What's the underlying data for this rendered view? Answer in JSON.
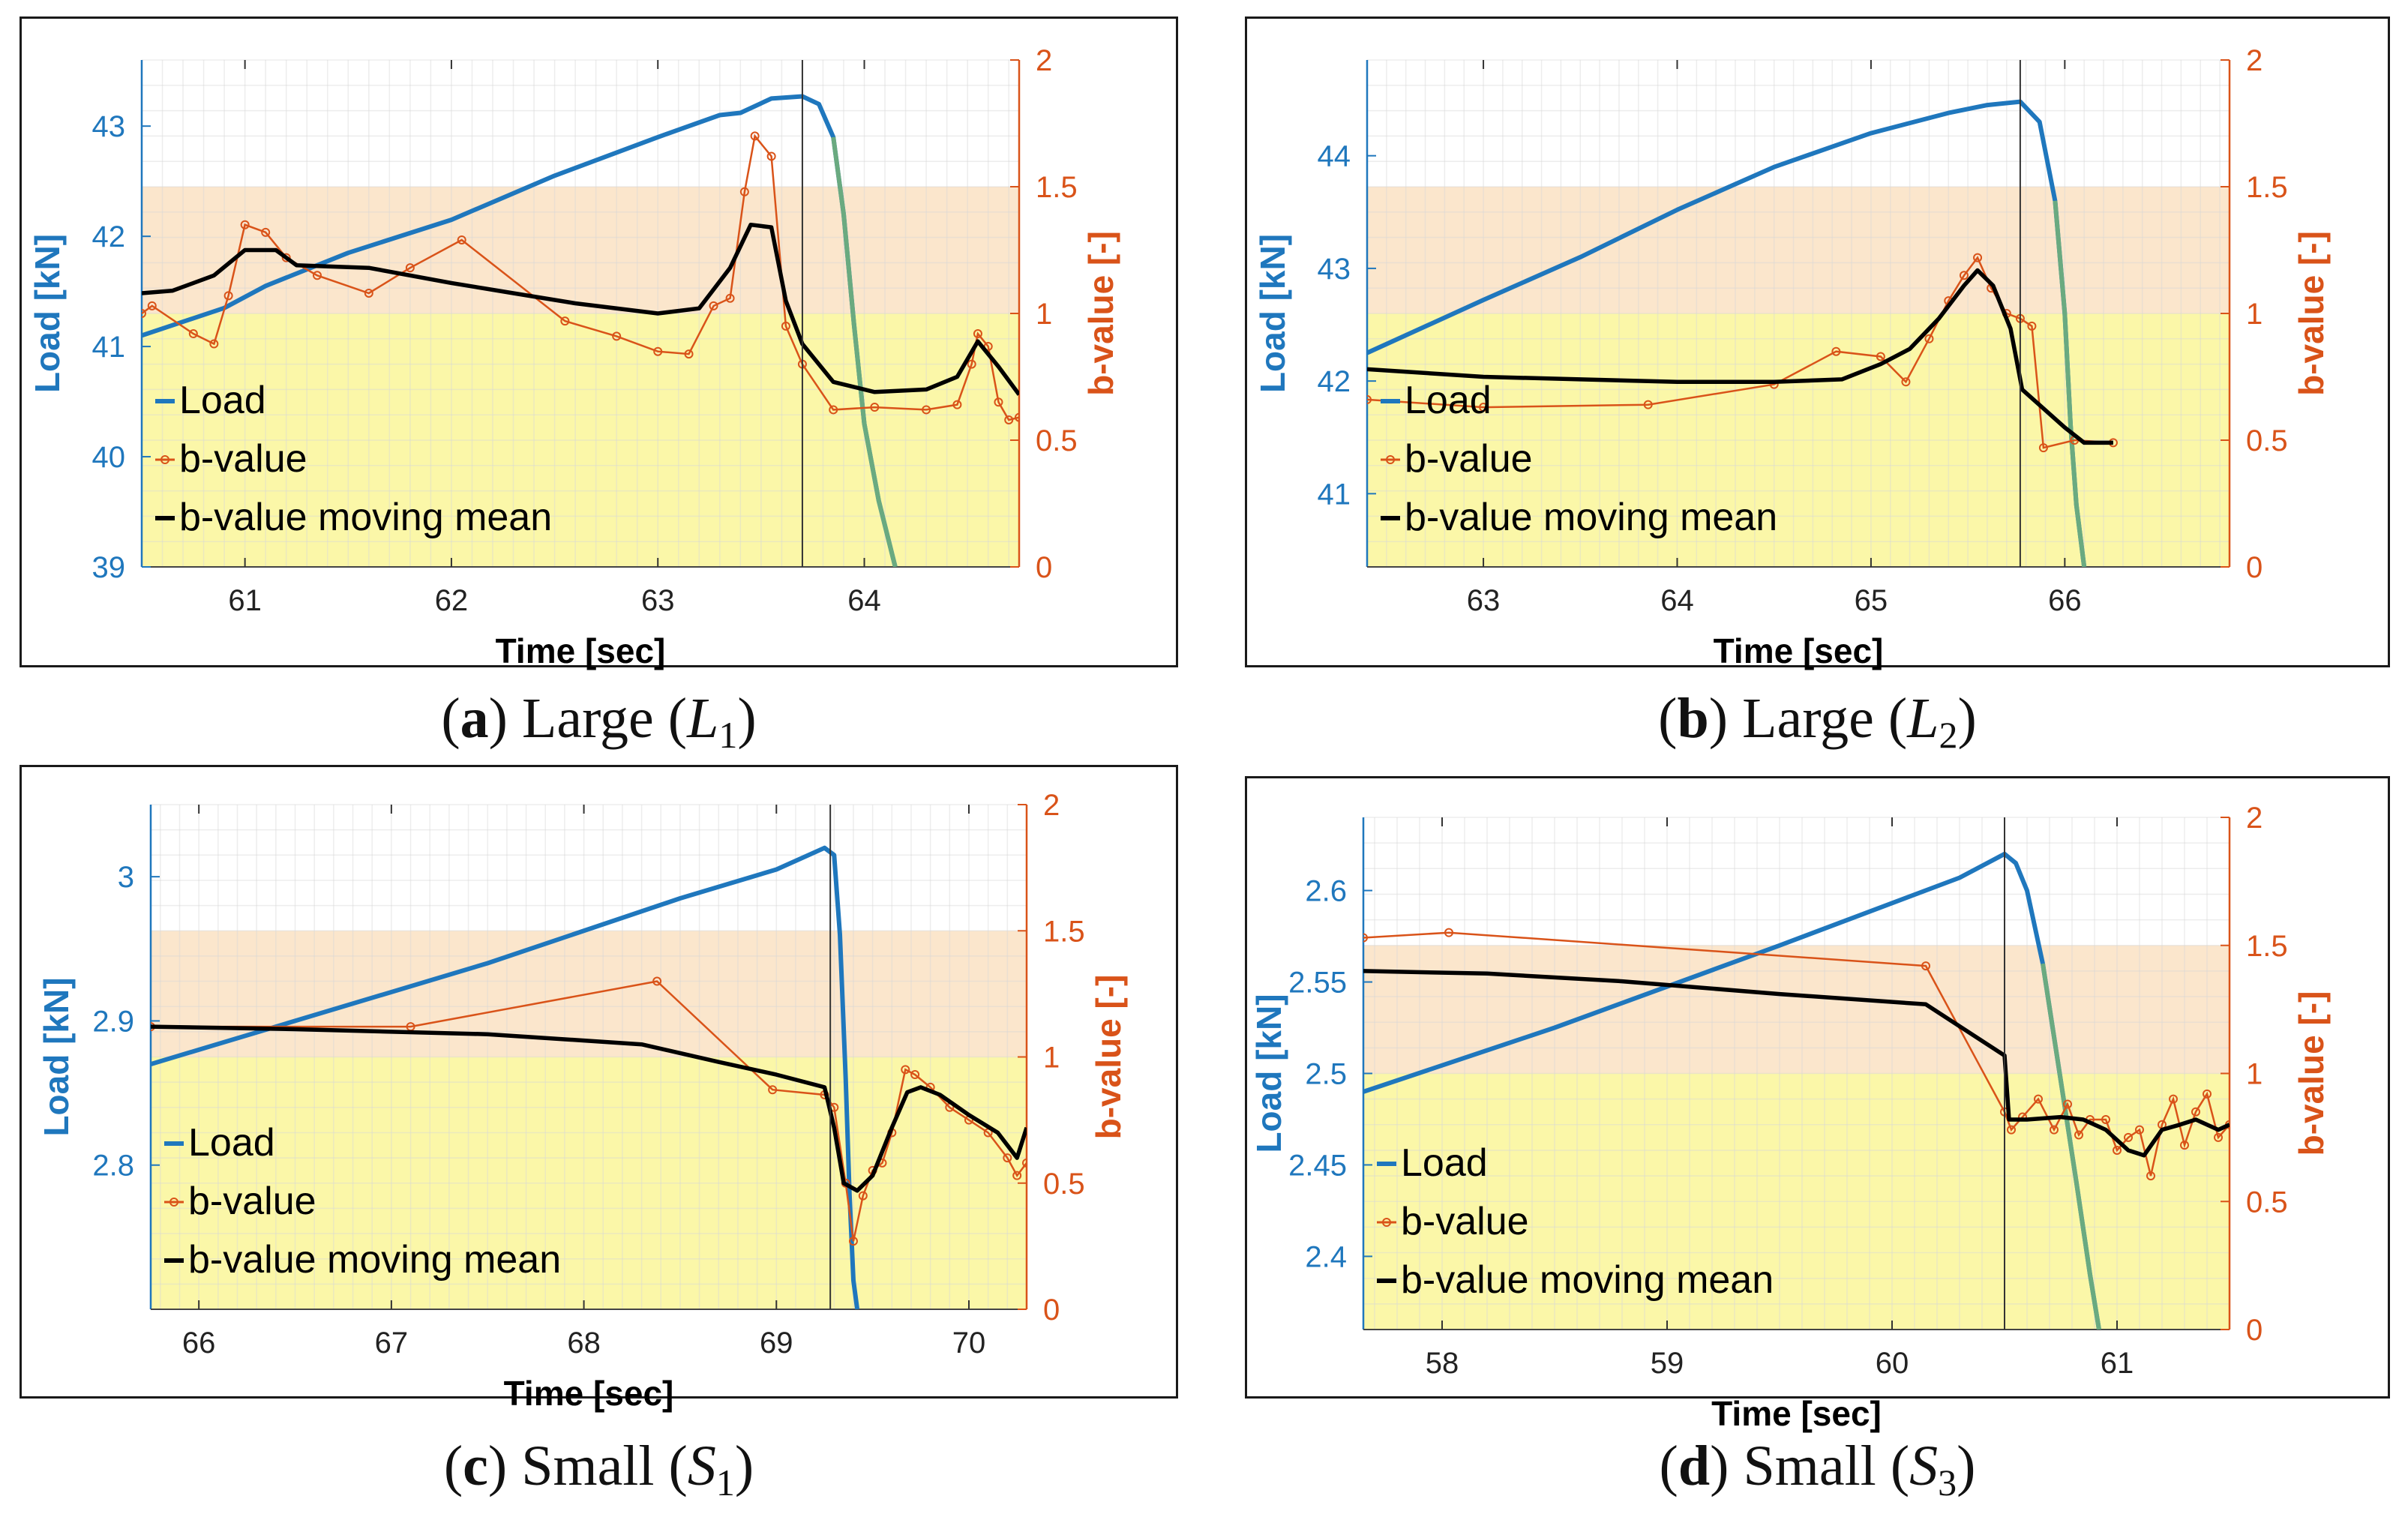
{
  "colors": {
    "load": "#1f77bd",
    "load_post": "#6aaa80",
    "bvalue": "#d95319",
    "moving_mean": "#000000",
    "band_high": "#fbe6cc",
    "band_low": "#fbf7a8"
  },
  "panels": [
    {
      "caption": {
        "letter": "a",
        "label": "Large",
        "symbol": "L",
        "sub": "1"
      },
      "chart_data": {
        "type": "line",
        "xlabel": "Time [sec]",
        "ylabel_left": "Load [kN]",
        "ylabel_right": "b-value [-]",
        "xlim": [
          60.5,
          64.75
        ],
        "ylim_left": [
          39,
          43.6
        ],
        "ylim_right": [
          0,
          2
        ],
        "xticks": [
          61,
          62,
          63,
          64
        ],
        "yticks_left": [
          39,
          40,
          41,
          42,
          43
        ],
        "yticks_right": [
          0,
          0.5,
          1,
          1.5,
          2
        ],
        "bands": [
          {
            "from": 1.0,
            "to": 1.5
          },
          {
            "from": 0,
            "to": 1.0
          }
        ],
        "failure_time": 63.7,
        "legend": [
          "Load",
          "b-value",
          "b-value moving mean"
        ],
        "series": [
          {
            "name": "Load",
            "axis": "left",
            "x": [
              60.5,
              60.9,
              61.1,
              61.5,
              62.0,
              62.5,
              63.0,
              63.3,
              63.4,
              63.55,
              63.7,
              63.78,
              63.85,
              63.9,
              63.95,
              64.0,
              64.07,
              64.15
            ],
            "y": [
              41.1,
              41.35,
              41.55,
              41.85,
              42.15,
              42.55,
              42.9,
              43.1,
              43.12,
              43.25,
              43.27,
              43.2,
              42.9,
              42.2,
              41.2,
              40.3,
              39.6,
              39.0
            ]
          },
          {
            "name": "b-value",
            "axis": "right",
            "x": [
              60.5,
              60.55,
              60.75,
              60.85,
              60.92,
              61.0,
              61.1,
              61.2,
              61.35,
              61.6,
              61.8,
              62.05,
              62.55,
              62.8,
              63.0,
              63.15,
              63.27,
              63.35,
              63.42,
              63.47,
              63.55,
              63.62,
              63.7,
              63.85,
              64.05,
              64.3,
              64.45,
              64.52,
              64.55,
              64.6,
              64.65,
              64.7,
              64.75
            ],
            "y": [
              1.0,
              1.03,
              0.92,
              0.88,
              1.07,
              1.35,
              1.32,
              1.22,
              1.15,
              1.08,
              1.18,
              1.29,
              0.97,
              0.91,
              0.85,
              0.84,
              1.03,
              1.06,
              1.48,
              1.7,
              1.62,
              0.95,
              0.8,
              0.62,
              0.63,
              0.62,
              0.64,
              0.8,
              0.92,
              0.87,
              0.65,
              0.58,
              0.59
            ]
          },
          {
            "name": "b-value moving mean",
            "axis": "right",
            "x": [
              60.5,
              60.65,
              60.85,
              61.0,
              61.15,
              61.25,
              61.6,
              62.0,
              62.3,
              62.6,
              63.0,
              63.2,
              63.35,
              63.45,
              63.55,
              63.62,
              63.7,
              63.85,
              64.05,
              64.3,
              64.45,
              64.55,
              64.65,
              64.75
            ],
            "y": [
              1.08,
              1.09,
              1.15,
              1.25,
              1.25,
              1.19,
              1.18,
              1.12,
              1.08,
              1.04,
              1.0,
              1.02,
              1.18,
              1.35,
              1.34,
              1.05,
              0.88,
              0.73,
              0.69,
              0.7,
              0.75,
              0.89,
              0.79,
              0.68
            ]
          }
        ]
      }
    },
    {
      "caption": {
        "letter": "b",
        "label": "Large",
        "symbol": "L",
        "sub": "2"
      },
      "chart_data": {
        "type": "line",
        "xlabel": "Time [sec]",
        "ylabel_left": "Load [kN]",
        "ylabel_right": "b-value [-]",
        "xlim": [
          62.4,
          66.85
        ],
        "ylim_left": [
          40.35,
          44.85
        ],
        "ylim_right": [
          0,
          2
        ],
        "xticks": [
          63,
          64,
          65,
          66
        ],
        "yticks_left": [
          41,
          42,
          43,
          44
        ],
        "yticks_right": [
          0,
          0.5,
          1,
          1.5,
          2
        ],
        "bands": [
          {
            "from": 1.0,
            "to": 1.5
          },
          {
            "from": 0,
            "to": 1.0
          }
        ],
        "failure_time": 65.77,
        "legend": [
          "Load",
          "b-value",
          "b-value moving mean"
        ],
        "series": [
          {
            "name": "Load",
            "axis": "left",
            "x": [
              62.4,
              63.0,
              63.5,
              64.0,
              64.5,
              65.0,
              65.4,
              65.6,
              65.77,
              65.87,
              65.95,
              66.0,
              66.03,
              66.06,
              66.1
            ],
            "y": [
              42.25,
              42.72,
              43.1,
              43.52,
              43.9,
              44.2,
              44.38,
              44.45,
              44.48,
              44.3,
              43.6,
              42.6,
              41.6,
              40.9,
              40.35
            ]
          },
          {
            "name": "b-value",
            "axis": "right",
            "x": [
              62.4,
              63.0,
              63.85,
              64.5,
              64.82,
              65.05,
              65.18,
              65.3,
              65.4,
              65.48,
              65.55,
              65.62,
              65.7,
              65.77,
              65.83,
              65.89,
              66.05,
              66.25
            ],
            "y": [
              0.66,
              0.63,
              0.64,
              0.72,
              0.85,
              0.83,
              0.73,
              0.9,
              1.05,
              1.15,
              1.22,
              1.1,
              1.0,
              0.98,
              0.95,
              0.47,
              0.5,
              0.49
            ]
          },
          {
            "name": "b-value moving mean",
            "axis": "right",
            "x": [
              62.4,
              63.0,
              63.5,
              64.0,
              64.5,
              64.85,
              65.05,
              65.2,
              65.35,
              65.48,
              65.55,
              65.63,
              65.72,
              65.78,
              66.0,
              66.1,
              66.25
            ],
            "y": [
              0.78,
              0.75,
              0.74,
              0.73,
              0.73,
              0.74,
              0.8,
              0.86,
              0.98,
              1.11,
              1.17,
              1.11,
              0.94,
              0.7,
              0.55,
              0.49,
              0.49
            ]
          }
        ]
      }
    },
    {
      "caption": {
        "letter": "c",
        "label": "Small",
        "symbol": "S",
        "sub": "1"
      },
      "chart_data": {
        "type": "line",
        "xlabel": "Time [sec]",
        "ylabel_left": "Load [kN]",
        "ylabel_right": "b-value [-]",
        "xlim": [
          65.75,
          70.3
        ],
        "ylim_left": [
          2.7,
          3.05
        ],
        "ylim_right": [
          0,
          2
        ],
        "xticks": [
          66,
          67,
          68,
          69,
          70
        ],
        "yticks_left": [
          2.8,
          2.9,
          3.0
        ],
        "yticks_right": [
          0,
          0.5,
          1,
          1.5,
          2
        ],
        "yticklabels_left": [
          "2.8",
          "2.9",
          "3"
        ],
        "bands": [
          {
            "from": 1.0,
            "to": 1.5
          },
          {
            "from": 0,
            "to": 1.0
          }
        ],
        "failure_time": 69.28,
        "legend": [
          "Load",
          "b-value",
          "b-value moving mean"
        ],
        "series": [
          {
            "name": "Load",
            "axis": "left",
            "x": [
              65.75,
              66.5,
              67.5,
              68.5,
              69.0,
              69.25,
              69.3,
              69.33,
              69.36,
              69.38,
              69.4,
              69.42
            ],
            "y": [
              2.87,
              2.9,
              2.94,
              2.985,
              3.005,
              3.02,
              3.015,
              2.96,
              2.86,
              2.78,
              2.72,
              2.7
            ]
          },
          {
            "name": "b-value",
            "axis": "right",
            "x": [
              65.75,
              67.1,
              68.38,
              68.98,
              69.25,
              69.3,
              69.36,
              69.4,
              69.45,
              69.5,
              69.55,
              69.6,
              69.67,
              69.72,
              69.8,
              69.9,
              70.0,
              70.1,
              70.2,
              70.25,
              70.3
            ],
            "y": [
              1.12,
              1.12,
              1.3,
              0.87,
              0.85,
              0.8,
              0.5,
              0.27,
              0.45,
              0.55,
              0.58,
              0.7,
              0.95,
              0.93,
              0.88,
              0.8,
              0.75,
              0.7,
              0.6,
              0.53,
              0.58
            ]
          },
          {
            "name": "b-value moving mean",
            "axis": "right",
            "x": [
              65.75,
              66.5,
              67.5,
              68.3,
              68.7,
              69.0,
              69.25,
              69.3,
              69.35,
              69.42,
              69.5,
              69.6,
              69.68,
              69.75,
              69.85,
              70.0,
              70.15,
              70.25,
              70.3
            ],
            "y": [
              1.12,
              1.11,
              1.09,
              1.05,
              0.98,
              0.93,
              0.88,
              0.72,
              0.5,
              0.47,
              0.53,
              0.72,
              0.86,
              0.88,
              0.85,
              0.77,
              0.7,
              0.6,
              0.72
            ]
          }
        ]
      }
    },
    {
      "caption": {
        "letter": "d",
        "label": "Small",
        "symbol": "S",
        "sub": "3"
      },
      "chart_data": {
        "type": "line",
        "xlabel": "Time [sec]",
        "ylabel_left": "Load [kN]",
        "ylabel_right": "b-value [-]",
        "xlim": [
          57.65,
          61.5
        ],
        "ylim_left": [
          2.36,
          2.64
        ],
        "ylim_right": [
          0,
          2
        ],
        "xticks": [
          58,
          59,
          60,
          61
        ],
        "yticks_left": [
          2.4,
          2.45,
          2.5,
          2.55,
          2.6
        ],
        "yticks_right": [
          0,
          0.5,
          1,
          1.5,
          2
        ],
        "bands": [
          {
            "from": 1.0,
            "to": 1.5
          },
          {
            "from": 0,
            "to": 1.0
          }
        ],
        "failure_time": 60.5,
        "legend": [
          "Load",
          "b-value",
          "b-value moving mean"
        ],
        "series": [
          {
            "name": "Load",
            "axis": "left",
            "x": [
              57.65,
              58.5,
              59.5,
              60.3,
              60.5,
              60.55,
              60.6,
              60.67,
              60.72,
              60.77,
              60.82,
              60.88,
              60.92
            ],
            "y": [
              2.49,
              2.525,
              2.57,
              2.607,
              2.62,
              2.615,
              2.6,
              2.56,
              2.52,
              2.48,
              2.44,
              2.39,
              2.36
            ]
          },
          {
            "name": "b-value",
            "axis": "right",
            "x": [
              57.65,
              58.03,
              60.15,
              60.5,
              60.53,
              60.58,
              60.65,
              60.72,
              60.78,
              60.83,
              60.88,
              60.95,
              61.0,
              61.05,
              61.1,
              61.15,
              61.2,
              61.25,
              61.3,
              61.35,
              61.4,
              61.45,
              61.5
            ],
            "y": [
              1.53,
              1.55,
              1.42,
              0.85,
              0.78,
              0.83,
              0.9,
              0.78,
              0.88,
              0.76,
              0.82,
              0.82,
              0.7,
              0.75,
              0.78,
              0.6,
              0.8,
              0.9,
              0.72,
              0.85,
              0.92,
              0.75,
              0.8
            ]
          },
          {
            "name": "b-value moving mean",
            "axis": "right",
            "x": [
              57.65,
              58.2,
              58.8,
              59.5,
              60.15,
              60.5,
              60.52,
              60.6,
              60.75,
              60.85,
              60.95,
              61.05,
              61.12,
              61.2,
              61.28,
              61.35,
              61.45,
              61.5
            ],
            "y": [
              1.4,
              1.39,
              1.36,
              1.31,
              1.27,
              1.07,
              0.82,
              0.82,
              0.83,
              0.82,
              0.78,
              0.7,
              0.68,
              0.78,
              0.8,
              0.82,
              0.78,
              0.8
            ]
          }
        ]
      }
    }
  ]
}
